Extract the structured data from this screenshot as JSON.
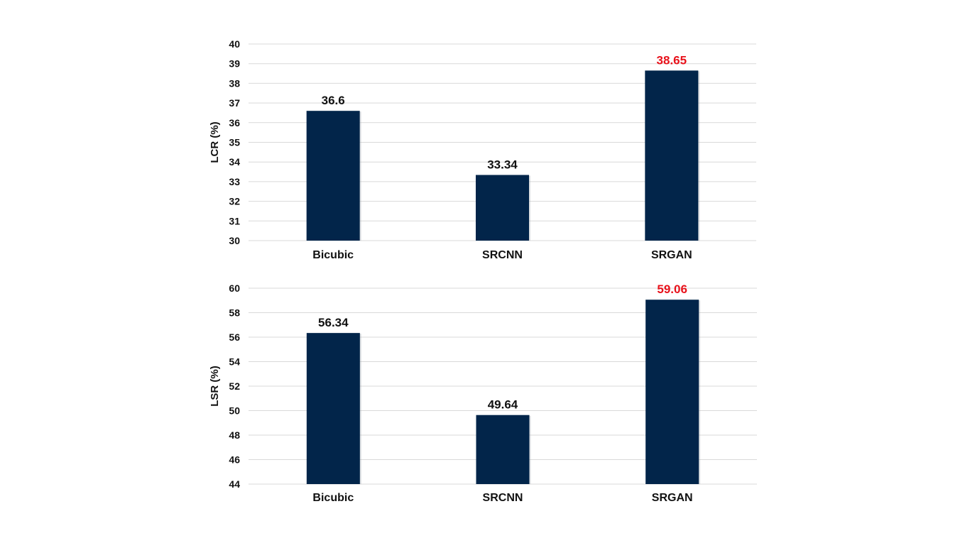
{
  "colors": {
    "bar": "#02254a",
    "highlight_label": "#e8121b",
    "label": "#111111",
    "grid": "#d9d9d9"
  },
  "chart_data": [
    {
      "type": "bar",
      "categories": [
        "Bicubic",
        "SRCNN",
        "SRGAN"
      ],
      "series": [
        {
          "values": [
            36.6,
            33.34,
            38.65
          ]
        }
      ],
      "data_labels": [
        "36.6",
        "33.34",
        "38.65"
      ],
      "highlight_index": 2,
      "ylabel": "LCR (%)",
      "ylim": [
        30,
        40
      ],
      "yticks": [
        30,
        31,
        32,
        33,
        34,
        35,
        36,
        37,
        38,
        39,
        40
      ],
      "grid": true
    },
    {
      "type": "bar",
      "categories": [
        "Bicubic",
        "SRCNN",
        "SRGAN"
      ],
      "series": [
        {
          "values": [
            56.34,
            49.64,
            59.06
          ]
        }
      ],
      "data_labels": [
        "56.34",
        "49.64",
        "59.06"
      ],
      "highlight_index": 2,
      "ylabel": "LSR (%)",
      "ylim": [
        44,
        60
      ],
      "yticks": [
        44,
        46,
        48,
        50,
        52,
        54,
        56,
        58,
        60
      ],
      "grid": true
    }
  ]
}
